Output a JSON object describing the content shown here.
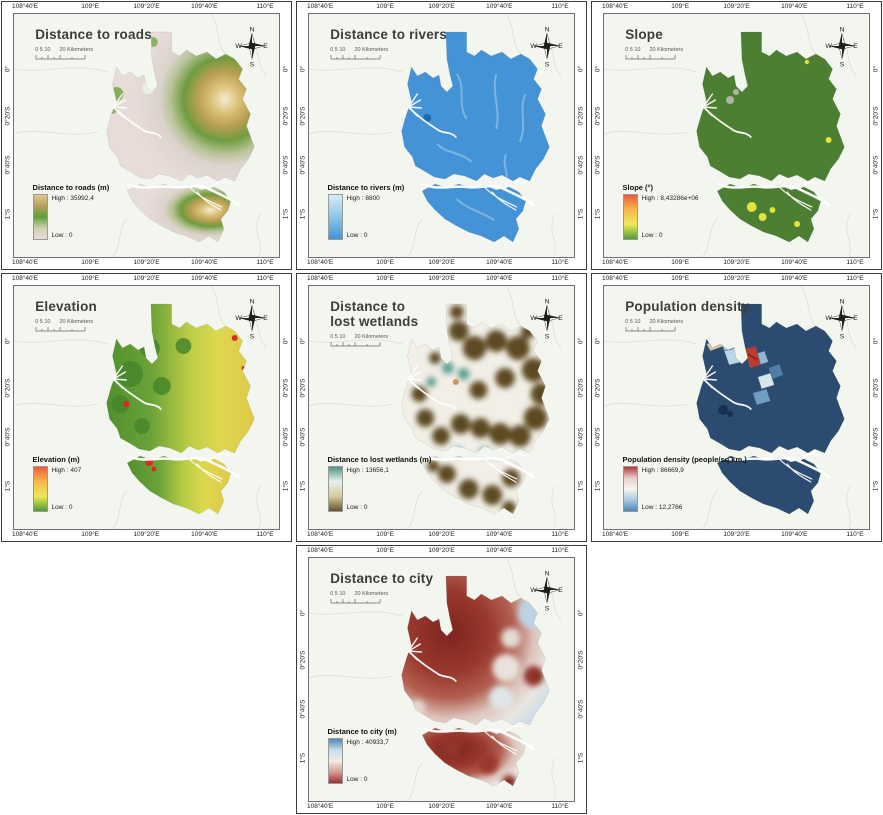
{
  "figure": {
    "axis_x": [
      "108°40'E",
      "109°E",
      "109°20'E",
      "109°40'E",
      "110°E"
    ],
    "axis_y": [
      "0°",
      "0°20'S",
      "0°40'S",
      "1°S"
    ],
    "scalebar": {
      "numbers": "0  5  10",
      "unit": "20 Kilometers"
    },
    "compass": {
      "n": "N",
      "w": "W",
      "e": "E",
      "s": "S"
    }
  },
  "panels": [
    {
      "id": "roads",
      "title": "Distance to roads",
      "legend": {
        "title": "Distance to roads (m)",
        "high": "High : 35992,4",
        "low": "Low : 0",
        "ramp": [
          "#dcc98f",
          "#b3a15b",
          "#5f9e3a",
          "#cfd0ae",
          "#e9dcd8"
        ]
      }
    },
    {
      "id": "rivers",
      "title": "Distance to rivers",
      "legend": {
        "title": "Distance to rivers (m)",
        "high": "High : 8800",
        "low": "Low : 0",
        "ramp": [
          "#d6ecf8",
          "#8ec4e8",
          "#4493d6"
        ]
      }
    },
    {
      "id": "slope",
      "title": "Slope",
      "legend": {
        "title": "Slope (°)",
        "high": "High : 8,43286e+06",
        "low": "Low : 0",
        "ramp": [
          "#f2593f",
          "#f5b84a",
          "#eee859",
          "#4f9c35"
        ]
      }
    },
    {
      "id": "elevation",
      "title": "Elevation",
      "legend": {
        "title": "Elevation (m)",
        "high": "High : 407",
        "low": "Low : 0",
        "ramp": [
          "#f2593f",
          "#f5b84a",
          "#eee859",
          "#4f9c35"
        ]
      }
    },
    {
      "id": "wetlands",
      "title": "Distance to\nlost wetlands",
      "legend": {
        "title": "Distance to lost wetlands (m)",
        "high": "High : 13656,1",
        "low": "Low : 0",
        "ramp": [
          "#4f9486",
          "#e9f1ec",
          "#d9c9a0",
          "#63522a"
        ]
      }
    },
    {
      "id": "population",
      "title": "Population density",
      "legend": {
        "title": "Population density (people/sq.km.)",
        "high": "High : 86669,9",
        "low": "Low : 12,2766",
        "ramp": [
          "#ae3a3c",
          "#e8cfc8",
          "#f7f5f3",
          "#a9c9df",
          "#4e86ba"
        ]
      }
    },
    {
      "id": "city",
      "title": "Distance to city",
      "legend": {
        "title": "Distance to city (m)",
        "high": "High : 40933,7",
        "low": "Low : 0",
        "ramp": [
          "#4e86ba",
          "#c8dcea",
          "#f3ece6",
          "#d89a8e",
          "#9e2f33"
        ]
      }
    }
  ]
}
